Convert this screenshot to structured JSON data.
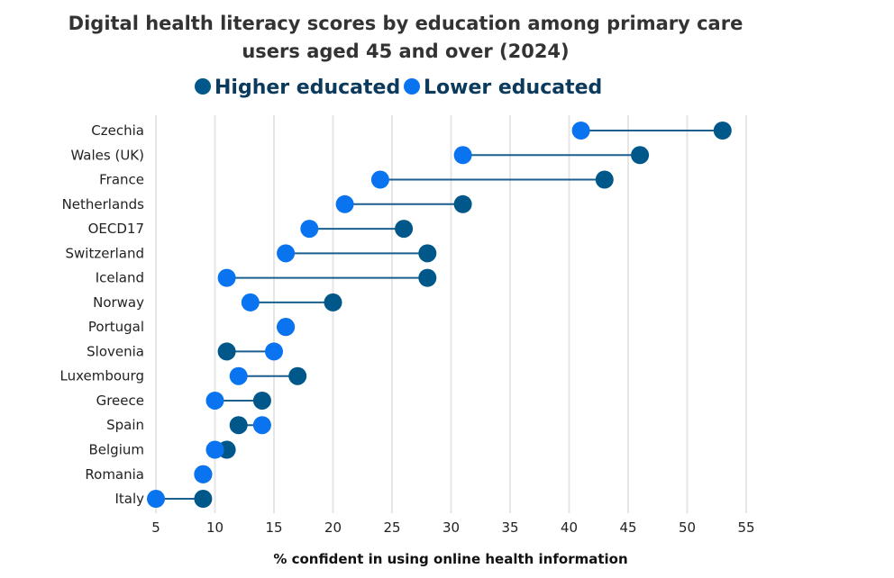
{
  "chart_data": {
    "type": "dumbbell",
    "title_lines": [
      "Digital health literacy scores by education among primary care",
      "users aged 45 and over (2024)"
    ],
    "xlabel": "% confident in using online health information",
    "xlim": [
      5,
      55
    ],
    "xticks": [
      5,
      10,
      15,
      20,
      25,
      30,
      35,
      40,
      45,
      50,
      55
    ],
    "grid": "vertical",
    "legend_position": "top-center",
    "series": [
      {
        "name": "Higher educated",
        "color": "#00578A"
      },
      {
        "name": "Lower educated",
        "color": "#0A74F0"
      }
    ],
    "categories": [
      "Czechia",
      "Wales (UK)",
      "France",
      "Netherlands",
      "OECD17",
      "Switzerland",
      "Iceland",
      "Norway",
      "Portugal",
      "Slovenia",
      "Luxembourg",
      "Greece",
      "Spain",
      "Belgium",
      "Romania",
      "Italy"
    ],
    "higher": [
      53,
      46,
      43,
      31,
      26,
      28,
      28,
      20,
      16,
      11,
      17,
      14,
      12,
      11,
      9,
      9
    ],
    "lower": [
      41,
      31,
      24,
      21,
      18,
      16,
      11,
      13,
      16,
      15,
      12,
      10,
      14,
      10,
      9,
      5
    ]
  }
}
